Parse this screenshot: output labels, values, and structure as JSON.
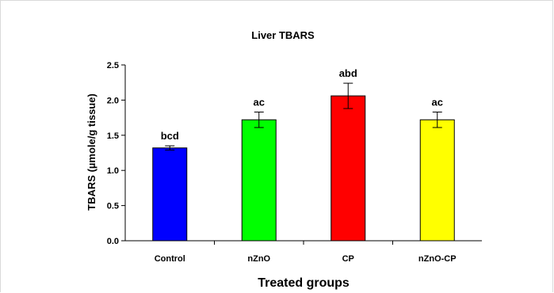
{
  "chart_data": {
    "type": "bar",
    "title": "Liver TBARS",
    "xlabel": "Treated groups",
    "ylabel": "TBARS (µmole/g tissue)",
    "categories": [
      "Control",
      "nZnO",
      "CP",
      "nZnO-CP"
    ],
    "values": [
      1.32,
      1.72,
      2.06,
      1.72
    ],
    "errors": [
      0.03,
      0.11,
      0.18,
      0.11
    ],
    "annotations": [
      "bcd",
      "ac",
      "abd",
      "ac"
    ],
    "bar_colors": [
      "#0000ff",
      "#00ff00",
      "#ff0000",
      "#ffff00"
    ],
    "ylim": [
      0,
      2.5
    ],
    "yticks": [
      "0.0",
      "0.5",
      "1.0",
      "1.5",
      "2.0",
      "2.5"
    ],
    "grid": false,
    "legend": "none"
  }
}
